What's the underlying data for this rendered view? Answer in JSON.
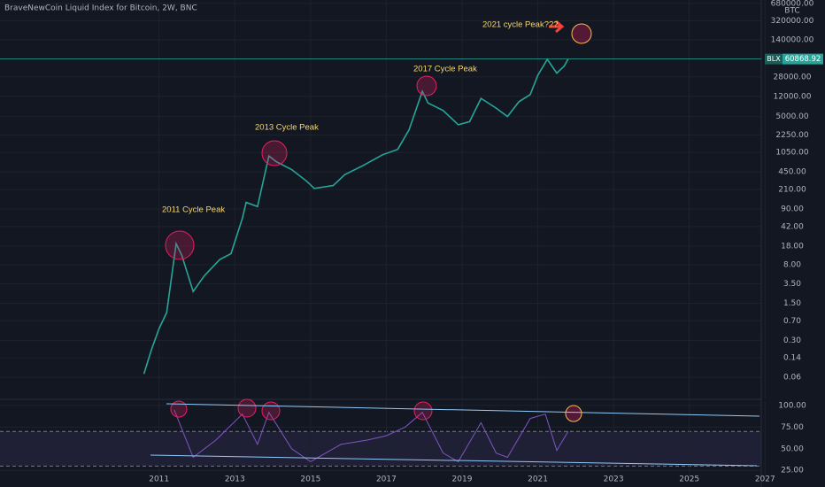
{
  "chart_data": [
    {
      "type": "line",
      "title": "BraveNewCoin Liquid Index for Bitcoin, 2W, BNC",
      "currency": "BTC",
      "log_scale": true,
      "xlim": [
        2006.8,
        2026.9
      ],
      "xticks": [
        2011,
        2013,
        2015,
        2017,
        2019,
        2021,
        2023,
        2025,
        2027
      ],
      "ylim": [
        0.024,
        790000
      ],
      "yticks": [
        {
          "value": 680000,
          "label": "680000.00"
        },
        {
          "value": 320000,
          "label": "320000.00"
        },
        {
          "value": 140000,
          "label": "140000.00"
        },
        {
          "value": 28000,
          "label": "28000.00"
        },
        {
          "value": 12000,
          "label": "12000.00"
        },
        {
          "value": 5000,
          "label": "5000.00"
        },
        {
          "value": 2250,
          "label": "2250.00"
        },
        {
          "value": 1050,
          "label": "1050.00"
        },
        {
          "value": 450,
          "label": "450.00"
        },
        {
          "value": 210,
          "label": "210.00"
        },
        {
          "value": 90,
          "label": "90.00"
        },
        {
          "value": 42,
          "label": "42.00"
        },
        {
          "value": 18,
          "label": "18.00"
        },
        {
          "value": 8,
          "label": "8.00"
        },
        {
          "value": 3.5,
          "label": "3.50"
        },
        {
          "value": 1.5,
          "label": "1.50"
        },
        {
          "value": 0.7,
          "label": "0.70"
        },
        {
          "value": 0.3,
          "label": "0.30"
        },
        {
          "value": 0.14,
          "label": "0.14"
        },
        {
          "value": 0.06,
          "label": "0.06"
        }
      ],
      "x": [
        2010.6,
        2010.8,
        2011.0,
        2011.2,
        2011.45,
        2011.6,
        2011.9,
        2012.2,
        2012.6,
        2012.9,
        2013.2,
        2013.3,
        2013.6,
        2013.9,
        2014.1,
        2014.5,
        2014.9,
        2015.1,
        2015.6,
        2015.9,
        2016.4,
        2016.9,
        2017.3,
        2017.6,
        2017.95,
        2018.1,
        2018.5,
        2018.9,
        2019.2,
        2019.5,
        2019.9,
        2020.2,
        2020.5,
        2020.8,
        2021.0,
        2021.25,
        2021.5,
        2021.7,
        2021.8
      ],
      "series": [
        {
          "name": "BLX",
          "color": "#26a69a",
          "values": [
            0.07,
            0.2,
            0.5,
            1.0,
            20,
            12,
            2.5,
            5,
            10,
            13,
            60,
            120,
            100,
            900,
            700,
            500,
            300,
            220,
            250,
            400,
            600,
            950,
            1200,
            2800,
            15000,
            9000,
            6500,
            3500,
            4000,
            11000,
            7200,
            5000,
            9500,
            13000,
            30000,
            60000,
            33000,
            45000,
            60868.92
          ]
        }
      ],
      "last_price": 60868.92,
      "annotations": [
        "2011 Cycle Peak",
        "2013 Cycle Peak",
        "2017 Cycle Peak",
        "2021 cycle Peak???"
      ]
    },
    {
      "type": "line",
      "xlim": [
        2006.8,
        2026.9
      ],
      "xticks": [
        2011,
        2013,
        2015,
        2017,
        2019,
        2021,
        2023,
        2025,
        2027
      ],
      "ylim": [
        16,
        105
      ],
      "yticks": [
        {
          "value": 100,
          "label": "100.00"
        },
        {
          "value": 75,
          "label": "75.00"
        },
        {
          "value": 50,
          "label": "50.00"
        },
        {
          "value": 25,
          "label": "25.00"
        }
      ],
      "bands": [
        30,
        70
      ],
      "x": [
        2011.4,
        2011.9,
        2012.5,
        2013.2,
        2013.6,
        2013.9,
        2014.5,
        2015.0,
        2015.8,
        2016.5,
        2017.0,
        2017.5,
        2017.95,
        2018.5,
        2018.9,
        2019.5,
        2019.9,
        2020.2,
        2020.8,
        2021.2,
        2021.5,
        2021.8
      ],
      "series": [
        {
          "color": "#7e57c2",
          "values": [
            95,
            40,
            60,
            90,
            55,
            92,
            50,
            35,
            55,
            60,
            65,
            75,
            92,
            45,
            35,
            80,
            45,
            40,
            85,
            90,
            48,
            70
          ]
        }
      ]
    }
  ]
}
